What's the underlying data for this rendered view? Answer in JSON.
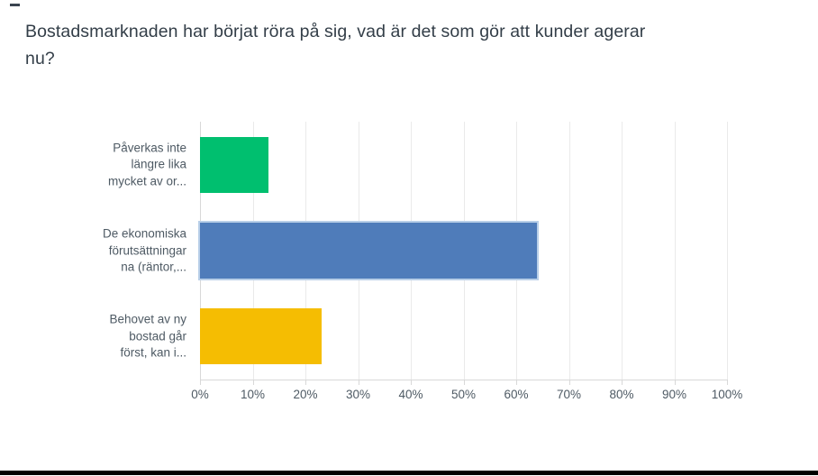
{
  "chart_data": {
    "type": "bar",
    "orientation": "horizontal",
    "title": "Bostadsmarknaden har börjat röra på sig, vad är det som gör att kunder agerar nu?",
    "title_lines": [
      "Bostadsmarknaden har börjat röra på sig, vad är det som gör att kunder agerar",
      "nu?"
    ],
    "categories": [
      "Påverkas inte längre lika mycket av or...",
      "De ekonomiska förutsättningarna (räntor,...",
      "Behovet av ny bostad går först, kan i..."
    ],
    "category_display_lines": [
      [
        "Påverkas inte",
        "längre lika",
        "mycket av or..."
      ],
      [
        "De ekonomiska",
        "förutsättningar",
        "na (räntor,..."
      ],
      [
        "Behovet av ny",
        "bostad går",
        "först, kan i..."
      ]
    ],
    "values": [
      13,
      64,
      23
    ],
    "value_unit": "%",
    "colors": [
      "#00BF6F",
      "#4F7CBA",
      "#F5BD02"
    ],
    "bar_outline": [
      null,
      "#B9CFE8",
      null
    ],
    "x_ticks": [
      "0%",
      "10%",
      "20%",
      "30%",
      "40%",
      "50%",
      "60%",
      "70%",
      "80%",
      "90%",
      "100%"
    ],
    "xlim": [
      0,
      100
    ],
    "grid": true,
    "legend": false
  },
  "decorations": {
    "bottom_bar_color": "#000000",
    "top_left_dash_color": "#3A4450"
  }
}
